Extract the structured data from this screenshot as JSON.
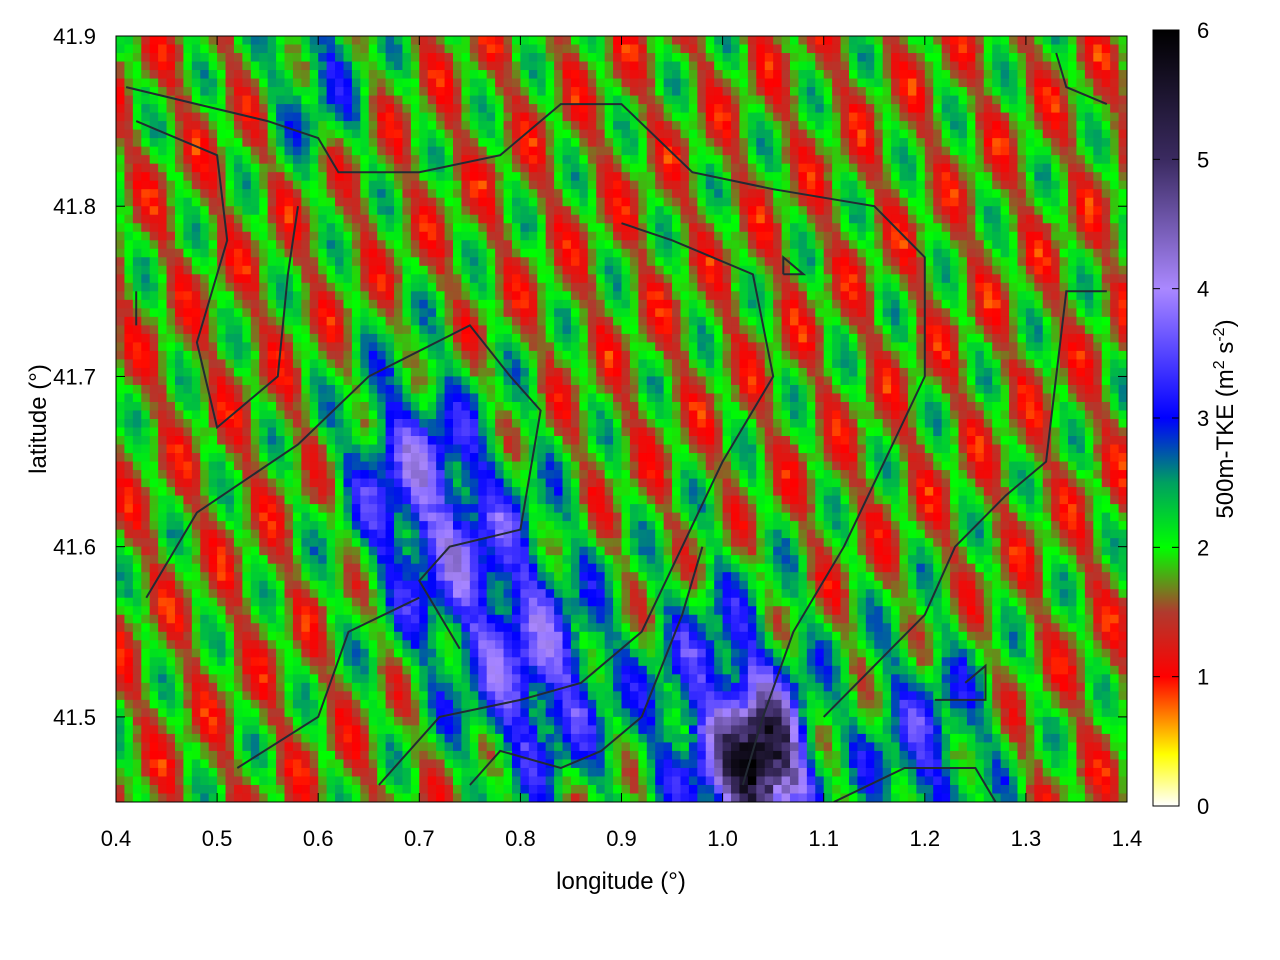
{
  "chart_data": {
    "type": "heatmap",
    "title": "",
    "xlabel": "longitude (°)",
    "ylabel": "latitude (°)",
    "xlim": [
      0.4,
      1.4
    ],
    "ylim": [
      41.45,
      41.9
    ],
    "x_ticks": [
      0.4,
      0.5,
      0.6,
      0.7,
      0.8,
      0.9,
      1.0,
      1.1,
      1.2,
      1.3,
      1.4
    ],
    "x_tick_labels": [
      "0.4",
      "0.5",
      "0.6",
      "0.7",
      "0.8",
      "0.9",
      "1.0",
      "1.1",
      "1.2",
      "1.3",
      "1.4"
    ],
    "y_ticks": [
      41.5,
      41.6,
      41.7,
      41.8,
      41.9
    ],
    "y_tick_labels": [
      "41.5",
      "41.6",
      "41.7",
      "41.8",
      "41.9"
    ],
    "colorbar": {
      "label": "500m-TKE (m² s⁻²)",
      "label_main": "500m-TKE (m",
      "label_sup1": "2",
      "label_mid": " s",
      "label_sup2": "-2",
      "label_end": ")",
      "range": [
        0,
        6
      ],
      "ticks": [
        0,
        1,
        2,
        3,
        4,
        5,
        6
      ],
      "tick_labels": [
        "0",
        "1",
        "2",
        "3",
        "4",
        "5",
        "6"
      ],
      "stops": [
        {
          "value": 0.0,
          "color": "#ffffff"
        },
        {
          "value": 0.4,
          "color": "#ffff00"
        },
        {
          "value": 1.0,
          "color": "#ff0000"
        },
        {
          "value": 1.5,
          "color": "#b03a2e"
        },
        {
          "value": 2.0,
          "color": "#00ff00"
        },
        {
          "value": 2.5,
          "color": "#00a060"
        },
        {
          "value": 3.0,
          "color": "#0000ff"
        },
        {
          "value": 4.0,
          "color": "#aa88ff"
        },
        {
          "value": 5.0,
          "color": "#3a2a60"
        },
        {
          "value": 6.0,
          "color": "#000000"
        }
      ]
    },
    "field_description": "Banded 500m-TKE field mostly 1-2.5 m2 s-2 (red/green) with diagonal streaks; higher values 3-4.5 (blue/violet) in the lower-center region around longitude 0.7-1.1, latitude 41.45-41.65, maximum ~6 near longitude 1.04, latitude 41.46.",
    "hotspots": [
      {
        "lon": 0.74,
        "lat": 41.6,
        "value": 3.6,
        "spread": 0.08
      },
      {
        "lon": 0.82,
        "lat": 41.52,
        "value": 3.8,
        "spread": 0.07
      },
      {
        "lon": 1.04,
        "lat": 41.47,
        "value": 5.8,
        "spread": 0.04
      },
      {
        "lon": 1.0,
        "lat": 41.5,
        "value": 3.8,
        "spread": 0.08
      },
      {
        "lon": 1.2,
        "lat": 41.48,
        "value": 3.4,
        "spread": 0.07
      },
      {
        "lon": 0.68,
        "lat": 41.65,
        "value": 3.3,
        "spread": 0.06
      },
      {
        "lon": 0.6,
        "lat": 41.88,
        "value": 3.1,
        "spread": 0.05
      }
    ]
  }
}
